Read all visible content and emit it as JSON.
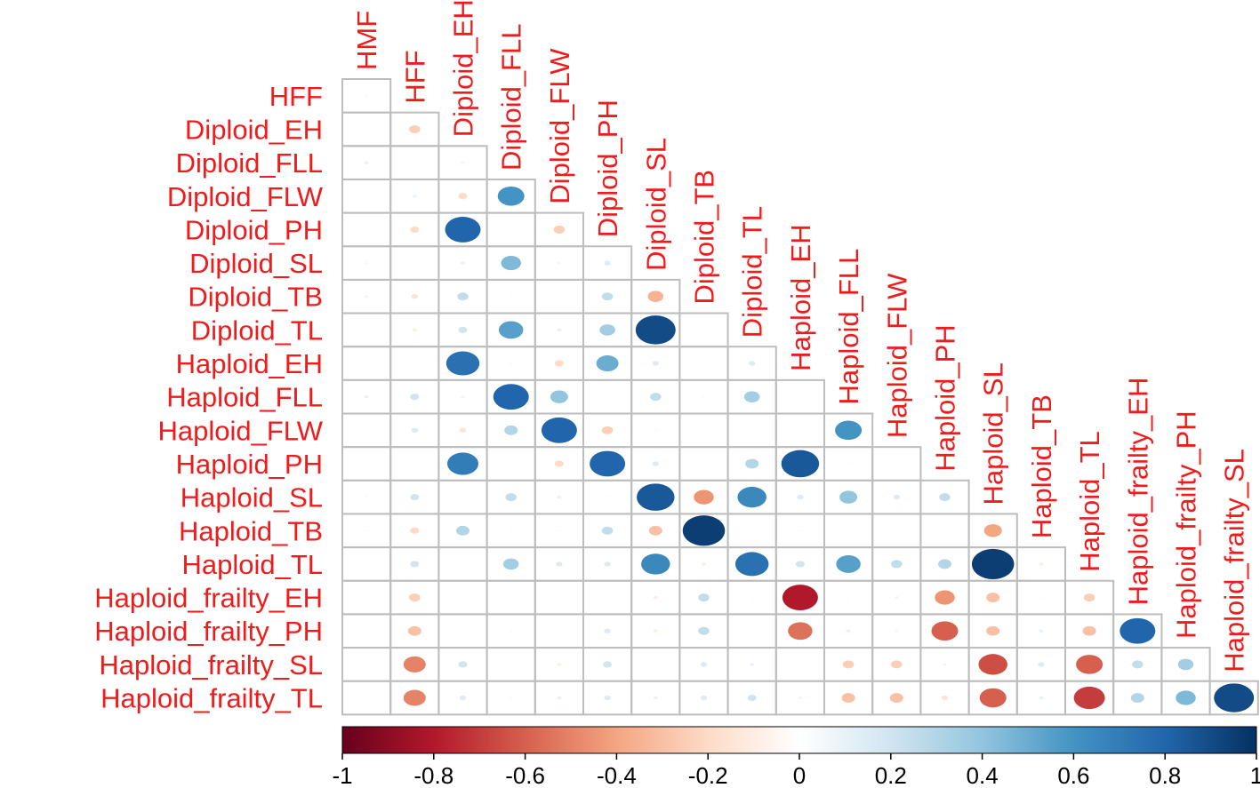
{
  "chart_data": {
    "type": "heatmap",
    "variables": [
      "HMF",
      "HFF",
      "Diploid_EH",
      "Diploid_FLL",
      "Diploid_FLW",
      "Diploid_PH",
      "Diploid_SL",
      "Diploid_TB",
      "Diploid_TL",
      "Haploid_EH",
      "Haploid_FLL",
      "Haploid_FLW",
      "Haploid_PH",
      "Haploid_SL",
      "Haploid_TB",
      "Haploid_TL",
      "Haploid_frailty_EH",
      "Haploid_frailty_PH",
      "Haploid_frailty_SL",
      "Haploid_frailty_TL"
    ],
    "correlations": [
      [
        0.05
      ],
      [
        0.0,
        -0.25
      ],
      [
        0.1,
        0.02,
        -0.08
      ],
      [
        0.02,
        0.1,
        -0.2,
        0.6
      ],
      [
        0.0,
        -0.2,
        0.8,
        0.0,
        -0.25
      ],
      [
        0.06,
        -0.03,
        0.1,
        0.45,
        0.07,
        0.15
      ],
      [
        -0.08,
        -0.15,
        0.25,
        -0.05,
        0.0,
        0.25,
        -0.35
      ],
      [
        0.03,
        -0.1,
        0.2,
        0.55,
        0.1,
        0.35,
        0.9,
        0.0
      ],
      [
        0.0,
        -0.03,
        0.75,
        -0.05,
        -0.2,
        0.5,
        0.15,
        0.0,
        0.15
      ],
      [
        0.1,
        0.2,
        -0.08,
        0.8,
        0.4,
        -0.05,
        0.25,
        -0.05,
        0.35,
        -0.03
      ],
      [
        0.02,
        0.15,
        -0.15,
        0.3,
        0.8,
        -0.25,
        0.05,
        -0.03,
        0.05,
        -0.03,
        0.6
      ],
      [
        0.02,
        -0.03,
        0.7,
        0.0,
        -0.2,
        0.8,
        0.15,
        0.03,
        0.3,
        0.85,
        0.05,
        -0.05
      ],
      [
        0.05,
        0.2,
        -0.03,
        0.25,
        0.1,
        0.05,
        0.85,
        -0.45,
        0.65,
        0.15,
        0.4,
        0.15,
        0.25
      ],
      [
        -0.05,
        -0.2,
        0.3,
        -0.05,
        -0.05,
        0.25,
        -0.3,
        0.95,
        0.02,
        0.05,
        -0.03,
        -0.02,
        0.03,
        -0.4
      ],
      [
        0.02,
        0.2,
        0.03,
        0.35,
        0.15,
        0.15,
        0.65,
        -0.1,
        0.75,
        0.2,
        0.55,
        0.25,
        0.3,
        0.95,
        -0.1
      ],
      [
        0.0,
        -0.25,
        0.03,
        -0.03,
        0.02,
        0.05,
        -0.1,
        0.25,
        -0.05,
        -0.8,
        -0.05,
        -0.08,
        -0.45,
        -0.3,
        0.05,
        -0.25
      ],
      [
        -0.03,
        -0.3,
        0.05,
        -0.05,
        -0.05,
        0.15,
        -0.1,
        0.25,
        -0.02,
        -0.55,
        -0.1,
        -0.08,
        -0.6,
        -0.3,
        0.1,
        -0.3,
        0.8
      ],
      [
        0.03,
        -0.5,
        0.2,
        0.02,
        -0.1,
        0.2,
        0.02,
        0.15,
        0.1,
        -0.02,
        -0.25,
        -0.25,
        -0.08,
        -0.65,
        0.15,
        -0.6,
        0.25,
        0.35
      ],
      [
        0.03,
        -0.5,
        0.15,
        0.05,
        0.1,
        0.15,
        0.1,
        0.15,
        0.2,
        -0.08,
        -0.3,
        -0.3,
        -0.15,
        -0.6,
        0.1,
        -0.7,
        0.3,
        0.45,
        0.9
      ]
    ],
    "colorbar": {
      "min": -1,
      "max": 1,
      "ticks": [
        "-1",
        "-0.8",
        "-0.6",
        "-0.4",
        "-0.2",
        "0",
        "0.2",
        "0.4",
        "0.6",
        "0.8",
        "1"
      ]
    },
    "colors": {
      "label": "#ee1c1c",
      "grid": "#bdbdbd",
      "negative_strong": "#67001f",
      "neutral": "#ffffff",
      "positive_strong": "#053061"
    }
  }
}
